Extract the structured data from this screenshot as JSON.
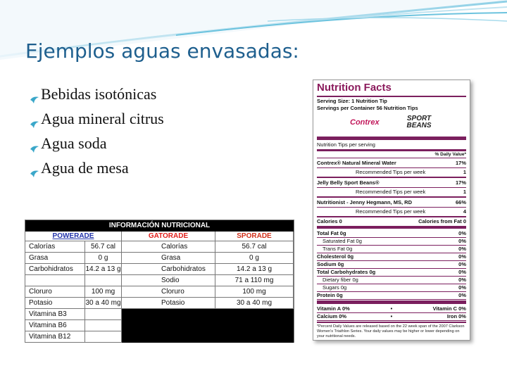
{
  "title": "Ejemplos aguas envasadas:",
  "bullets": [
    "Bebidas isotónicas",
    "Agua mineral citrus",
    "Agua soda",
    "Agua de mesa"
  ],
  "table": {
    "title": "INFORMACIÓN NUTRICIONAL",
    "brands": [
      "POWERADE",
      "GATORADE",
      "SPORADE"
    ],
    "rows": [
      [
        "Calorías",
        "56.7 cal",
        "Calorías",
        "56.7 cal"
      ],
      [
        "Grasa",
        "0 g",
        "Grasa",
        "0 g"
      ],
      [
        "Carbohidratos",
        "14.2 a 13 g",
        "Carbohidratos",
        "14.2 a 13 g"
      ],
      [
        null,
        null,
        "Sodio",
        "71 a 110 mg"
      ],
      [
        "Cloruro",
        "100 mg",
        "Cloruro",
        "100 mg"
      ],
      [
        "Potasio",
        "30 a 40 mg",
        "Potasio",
        "30 a 40 mg"
      ],
      [
        "Vitamina B3",
        null,
        null,
        null
      ],
      [
        "Vitamina B6",
        null,
        null,
        null
      ],
      [
        "Vitamina B12",
        null,
        null,
        null
      ]
    ]
  },
  "nutrition_facts": {
    "title": "Nutrition Facts",
    "serving_size": "Serving Size: 1 Nutrition Tip",
    "servings": "Servings per Container 56 Nutrition Tips",
    "logos": [
      "Contrex",
      "SPORT BEANS"
    ],
    "per_serving": "Nutrition Tips per serving",
    "daily_value_header": "% Daily Value*",
    "tips": [
      {
        "name": "Contrex® Natural Mineral Water",
        "percent": "17%",
        "rec_label": "Recommended Tips per week",
        "rec_value": "1"
      },
      {
        "name": "Jelly Belly Sport Beans®",
        "percent": "17%",
        "rec_label": "Recommended Tips per week",
        "rec_value": "1"
      },
      {
        "name": "Nutritionist - Jenny Hegmann, MS, RD",
        "percent": "66%",
        "rec_label": "Recommended Tips per week",
        "rec_value": "4"
      }
    ],
    "calories": "Calories 0",
    "calories_from_fat": "Calories from Fat 0",
    "nutrients": [
      {
        "name": "Total Fat 0g",
        "dv": "0%",
        "sub": [
          {
            "name": "Saturated Fat 0g",
            "dv": "0%"
          },
          {
            "name": "Trans Fat 0g",
            "dv": "0%"
          }
        ]
      },
      {
        "name": "Cholesterol 0g",
        "dv": "0%"
      },
      {
        "name": "Sodium 0g",
        "dv": "0%"
      },
      {
        "name": "Total Carbohydrates 0g",
        "dv": "0%",
        "sub": [
          {
            "name": "Dietary fiber 0g",
            "dv": "0%"
          },
          {
            "name": "Sugars 0g",
            "dv": "0%"
          }
        ]
      },
      {
        "name": "Protein 0g",
        "dv": "0%"
      }
    ],
    "vitamins": [
      [
        "Vitamin A 0%",
        "Vitamin C 0%"
      ],
      [
        "Calcium 0%",
        "Iron 0%"
      ]
    ],
    "footnote": "*Percent Daily Values are released based on the 22 week span of the 2007 Clarkson Women's Triathlon Series. Your daily values may be higher or lower depending on your nutritional needs."
  }
}
